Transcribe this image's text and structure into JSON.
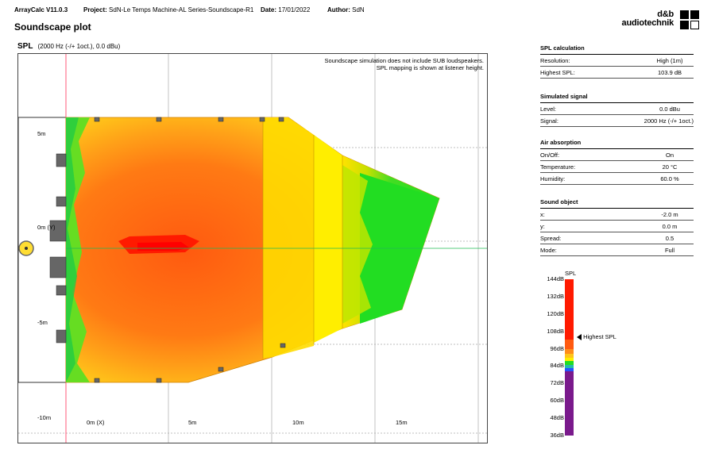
{
  "header": {
    "app": "ArrayCalc V11.0.3",
    "project_label": "Project:",
    "project": "SdN-Le Temps Machine-AL Series-Soundscape-R1",
    "date_label": "Date:",
    "date": "17/01/2022",
    "author_label": "Author:",
    "author": "SdN"
  },
  "page_title": "Soundscape plot",
  "logo": {
    "line1": "d&b",
    "line2": "audiotechnik"
  },
  "plot": {
    "label": "SPL",
    "subtitle": "(2000 Hz (-/+ 1oct.), 0.0 dBu)",
    "note_line1": "Soundscape simulation does not include SUB loudspeakers.",
    "note_line2": "SPL mapping is shown at listener height.",
    "y_labels": [
      "5m",
      "0m (Y)",
      "-5m",
      "-10m"
    ],
    "x_labels": [
      "0m (X)",
      "5m",
      "10m",
      "15m"
    ]
  },
  "panels": [
    {
      "title": "SPL calculation",
      "rows": [
        {
          "label": "Resolution:",
          "value": "High (1m)"
        },
        {
          "label": "Highest SPL:",
          "value": "103.9 dB"
        }
      ]
    },
    {
      "title": "Simulated signal",
      "rows": [
        {
          "label": "Level:",
          "value": "0.0 dBu"
        },
        {
          "label": "Signal:",
          "value": "2000 Hz (-/+ 1oct.)"
        }
      ]
    },
    {
      "title": "Air absorption",
      "rows": [
        {
          "label": "On/Off:",
          "value": "On"
        },
        {
          "label": "Temperature:",
          "value": "20 °C"
        },
        {
          "label": "Humidity:",
          "value": "60.0 %"
        }
      ]
    },
    {
      "title": "Sound object",
      "rows": [
        {
          "label": "x:",
          "value": "-2.0 m"
        },
        {
          "label": "y:",
          "value": "0.0 m"
        },
        {
          "label": "Spread:",
          "value": "0.5"
        },
        {
          "label": "Mode:",
          "value": "Full"
        }
      ]
    }
  ],
  "legend": {
    "title": "SPL",
    "ticks": [
      "144dB",
      "132dB",
      "120dB",
      "108dB",
      "96dB",
      "84dB",
      "72dB",
      "60dB",
      "48dB",
      "36dB"
    ],
    "highest_label": "Highest SPL",
    "highest_value_db": 103.9,
    "colors": {
      "red": "#ff1a00",
      "orange_red": "#ff5a10",
      "orange": "#ff8c1a",
      "yellow_orange": "#ffc41a",
      "yellow": "#ffee00",
      "green": "#22dd22",
      "blue": "#2255ff",
      "purple": "#7a1a8c"
    }
  }
}
